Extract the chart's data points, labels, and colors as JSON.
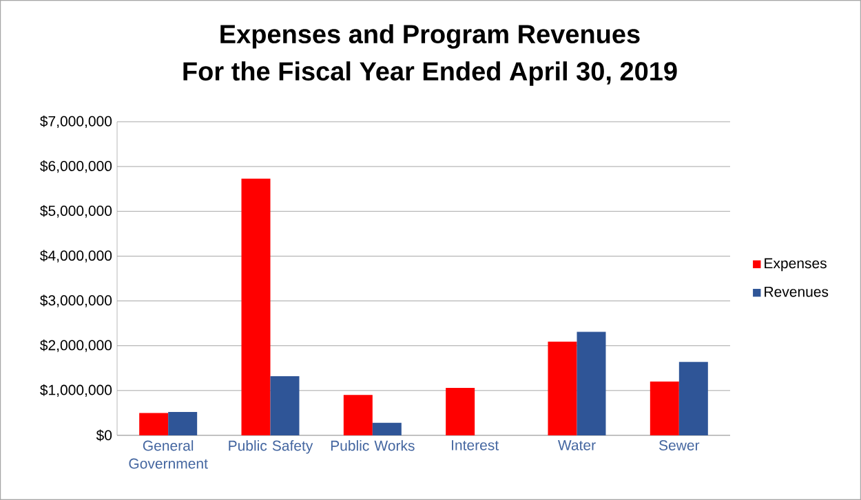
{
  "chart_data": {
    "type": "bar",
    "title": "Expenses and Program Revenues",
    "subtitle": "For the Fiscal Year Ended April 30, 2019",
    "categories": [
      "General Government",
      "Public Safety",
      "Public Works",
      "Interest",
      "Water",
      "Sewer"
    ],
    "series": [
      {
        "name": "Expenses",
        "color": "#ff0000",
        "values": [
          500000,
          5730000,
          900000,
          1060000,
          2090000,
          1200000
        ]
      },
      {
        "name": "Revenues",
        "color": "#2f5597",
        "values": [
          520000,
          1320000,
          280000,
          null,
          2310000,
          1640000
        ]
      }
    ],
    "ylim": [
      0,
      7000000
    ],
    "yticks": [
      {
        "value": 0,
        "label": "$0"
      },
      {
        "value": 1000000,
        "label": "$1,000,000"
      },
      {
        "value": 2000000,
        "label": "$2,000,000"
      },
      {
        "value": 3000000,
        "label": "$3,000,000"
      },
      {
        "value": 4000000,
        "label": "$4,000,000"
      },
      {
        "value": 5000000,
        "label": "$5,000,000"
      },
      {
        "value": 6000000,
        "label": "$6,000,000"
      },
      {
        "value": 7000000,
        "label": "$7,000,000"
      }
    ],
    "grid": "y",
    "legend": "right"
  }
}
